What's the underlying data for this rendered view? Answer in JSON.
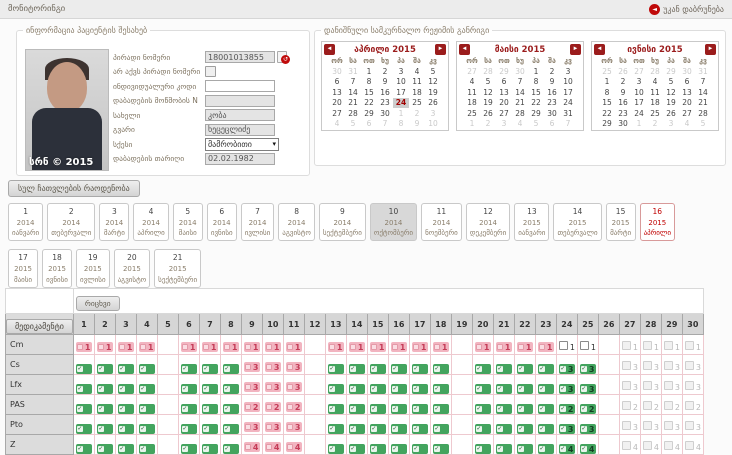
{
  "header": {
    "title": "მონიტორინგი",
    "back_label": "უკან დაბრუნება"
  },
  "patient": {
    "legend": "ინფორმაცია პაციენტის შესახებ",
    "photo_watermark": "სრნ © 2015",
    "fields": [
      {
        "key": "personal-number",
        "label": "პირადი ნომერი",
        "type": "text-icon",
        "value": "18001013855",
        "disabled": true
      },
      {
        "key": "no-personal-number",
        "label": "არ აქვს პირადი ნომერი",
        "type": "checkbox",
        "checked": false
      },
      {
        "key": "individual-code",
        "label": "ინდივიდუალური კოდი",
        "type": "text",
        "value": "",
        "disabled": false
      },
      {
        "key": "birth-certificate",
        "label": "დაბადების მოწმობის N",
        "type": "text",
        "value": "",
        "disabled": true
      },
      {
        "key": "first-name",
        "label": "სახელი",
        "type": "text",
        "value": "კობა",
        "disabled": true
      },
      {
        "key": "last-name",
        "label": "გვარი",
        "type": "text",
        "value": "ხეცეცლიძე",
        "disabled": true
      },
      {
        "key": "sex",
        "label": "სქესი",
        "type": "select",
        "value": "მამრობითი"
      },
      {
        "key": "birth-date",
        "label": "დაბადების თარიღი",
        "type": "text",
        "value": "02.02.1982",
        "disabled": true
      }
    ]
  },
  "calendars": {
    "legend": "დანიშნული სამკურნალო რეჟიმის განრიგი",
    "day_headers": [
      "ორ",
      "სა",
      "ოთ",
      "ხუ",
      "პა",
      "შა",
      "კვ"
    ],
    "months": [
      {
        "title": "აპრილი 2015",
        "weeks": [
          [
            {
              "d": 30,
              "m": 1
            },
            {
              "d": 31,
              "m": 1
            },
            {
              "d": 1
            },
            {
              "d": 2
            },
            {
              "d": 3
            },
            {
              "d": 4
            },
            {
              "d": 5
            }
          ],
          [
            {
              "d": 6
            },
            {
              "d": 7
            },
            {
              "d": 8
            },
            {
              "d": 9
            },
            {
              "d": 10
            },
            {
              "d": 11
            },
            {
              "d": 12
            }
          ],
          [
            {
              "d": 13
            },
            {
              "d": 14
            },
            {
              "d": 15
            },
            {
              "d": 16
            },
            {
              "d": 17
            },
            {
              "d": 18
            },
            {
              "d": 19
            }
          ],
          [
            {
              "d": 20
            },
            {
              "d": 21
            },
            {
              "d": 22
            },
            {
              "d": 23
            },
            {
              "d": 24,
              "t": 1
            },
            {
              "d": 25
            },
            {
              "d": 26
            }
          ],
          [
            {
              "d": 27
            },
            {
              "d": 28
            },
            {
              "d": 29
            },
            {
              "d": 30
            },
            {
              "d": 1,
              "m": 1
            },
            {
              "d": 2,
              "m": 1
            },
            {
              "d": 3,
              "m": 1
            }
          ],
          [
            {
              "d": 4,
              "m": 1
            },
            {
              "d": 5,
              "m": 1
            },
            {
              "d": 6,
              "m": 1
            },
            {
              "d": 7,
              "m": 1
            },
            {
              "d": 8,
              "m": 1
            },
            {
              "d": 9,
              "m": 1
            },
            {
              "d": 10,
              "m": 1
            }
          ]
        ]
      },
      {
        "title": "მაისი 2015",
        "weeks": [
          [
            {
              "d": 27,
              "m": 1
            },
            {
              "d": 28,
              "m": 1
            },
            {
              "d": 29,
              "m": 1
            },
            {
              "d": 30,
              "m": 1
            },
            {
              "d": 1
            },
            {
              "d": 2
            },
            {
              "d": 3
            }
          ],
          [
            {
              "d": 4
            },
            {
              "d": 5
            },
            {
              "d": 6
            },
            {
              "d": 7
            },
            {
              "d": 8
            },
            {
              "d": 9
            },
            {
              "d": 10
            }
          ],
          [
            {
              "d": 11
            },
            {
              "d": 12
            },
            {
              "d": 13
            },
            {
              "d": 14
            },
            {
              "d": 15
            },
            {
              "d": 16
            },
            {
              "d": 17
            }
          ],
          [
            {
              "d": 18
            },
            {
              "d": 19
            },
            {
              "d": 20
            },
            {
              "d": 21
            },
            {
              "d": 22
            },
            {
              "d": 23
            },
            {
              "d": 24
            }
          ],
          [
            {
              "d": 25
            },
            {
              "d": 26
            },
            {
              "d": 27
            },
            {
              "d": 28
            },
            {
              "d": 29
            },
            {
              "d": 30
            },
            {
              "d": 31
            }
          ],
          [
            {
              "d": 1,
              "m": 1
            },
            {
              "d": 2,
              "m": 1
            },
            {
              "d": 3,
              "m": 1
            },
            {
              "d": 4,
              "m": 1
            },
            {
              "d": 5,
              "m": 1
            },
            {
              "d": 6,
              "m": 1
            },
            {
              "d": 7,
              "m": 1
            }
          ]
        ]
      },
      {
        "title": "ივნისი 2015",
        "weeks": [
          [
            {
              "d": 25,
              "m": 1
            },
            {
              "d": 26,
              "m": 1
            },
            {
              "d": 27,
              "m": 1
            },
            {
              "d": 28,
              "m": 1
            },
            {
              "d": 29,
              "m": 1
            },
            {
              "d": 30,
              "m": 1
            },
            {
              "d": 31,
              "m": 1
            }
          ],
          [
            {
              "d": 1
            },
            {
              "d": 2
            },
            {
              "d": 3
            },
            {
              "d": 4
            },
            {
              "d": 5
            },
            {
              "d": 6
            },
            {
              "d": 7
            }
          ],
          [
            {
              "d": 8
            },
            {
              "d": 9
            },
            {
              "d": 10
            },
            {
              "d": 11
            },
            {
              "d": 12
            },
            {
              "d": 13
            },
            {
              "d": 14
            }
          ],
          [
            {
              "d": 15
            },
            {
              "d": 16
            },
            {
              "d": 17
            },
            {
              "d": 18
            },
            {
              "d": 19
            },
            {
              "d": 20
            },
            {
              "d": 21
            }
          ],
          [
            {
              "d": 22
            },
            {
              "d": 23
            },
            {
              "d": 24
            },
            {
              "d": 25
            },
            {
              "d": 26
            },
            {
              "d": 27
            },
            {
              "d": 28
            }
          ],
          [
            {
              "d": 29
            },
            {
              "d": 30
            },
            {
              "d": 1,
              "m": 1
            },
            {
              "d": 2,
              "m": 1
            },
            {
              "d": 3,
              "m": 1
            },
            {
              "d": 4,
              "m": 1
            },
            {
              "d": 5,
              "m": 1
            }
          ]
        ]
      }
    ]
  },
  "months_panel": {
    "total_button": "სულ ჩათვლების რაოდენობა",
    "row_break_after": 16,
    "boxes": [
      {
        "num": 1,
        "year": 2014,
        "name": "იანვარი"
      },
      {
        "num": 2,
        "year": 2014,
        "name": "თებერვალი"
      },
      {
        "num": 3,
        "year": 2014,
        "name": "მარტი"
      },
      {
        "num": 4,
        "year": 2014,
        "name": "აპრილი"
      },
      {
        "num": 5,
        "year": 2014,
        "name": "მაისი"
      },
      {
        "num": 6,
        "year": 2014,
        "name": "ივნისი"
      },
      {
        "num": 7,
        "year": 2014,
        "name": "ივლისი"
      },
      {
        "num": 8,
        "year": 2014,
        "name": "აგვისტო"
      },
      {
        "num": 9,
        "year": 2014,
        "name": "სექტემბერი"
      },
      {
        "num": 10,
        "year": 2014,
        "name": "ოქტომბერი",
        "selected": true
      },
      {
        "num": 11,
        "year": 2014,
        "name": "ნოემბერი"
      },
      {
        "num": 12,
        "year": 2014,
        "name": "დეკემბერი"
      },
      {
        "num": 13,
        "year": 2015,
        "name": "იანვარი"
      },
      {
        "num": 14,
        "year": 2015,
        "name": "თებერვალი"
      },
      {
        "num": 15,
        "year": 2015,
        "name": "მარტი"
      },
      {
        "num": 16,
        "year": 2015,
        "name": "აპრილი",
        "current": true
      },
      {
        "num": 17,
        "year": 2015,
        "name": "მაისი"
      },
      {
        "num": 18,
        "year": 2015,
        "name": "ივნისი"
      },
      {
        "num": 19,
        "year": 2015,
        "name": "ივლისი"
      },
      {
        "num": 20,
        "year": 2015,
        "name": "აგვისტო"
      },
      {
        "num": 21,
        "year": 2015,
        "name": "სექტემბერი"
      }
    ]
  },
  "med_table": {
    "date_button": "რიცხვი",
    "med_header": "მედიკამენტი",
    "days": 30,
    "empty_days": [
      5,
      12,
      19,
      26
    ],
    "taken_until": 23,
    "pending_days": [
      24,
      25
    ],
    "future_from": 27,
    "rows": [
      {
        "name": "Cm",
        "dose": 1,
        "style": "pink",
        "missed": []
      },
      {
        "name": "Cs",
        "dose": 3,
        "style": "green",
        "missed": [
          9,
          10,
          11
        ]
      },
      {
        "name": "Lfx",
        "dose": 3,
        "style": "green",
        "missed": [
          9,
          10,
          11
        ]
      },
      {
        "name": "PAS",
        "dose": 2,
        "style": "green",
        "missed": [
          9,
          10,
          11
        ]
      },
      {
        "name": "Pto",
        "dose": 3,
        "style": "green",
        "missed": [
          9,
          10,
          11
        ]
      },
      {
        "name": "Z",
        "dose": 4,
        "style": "green",
        "missed": [
          9,
          10,
          11
        ]
      }
    ]
  }
}
